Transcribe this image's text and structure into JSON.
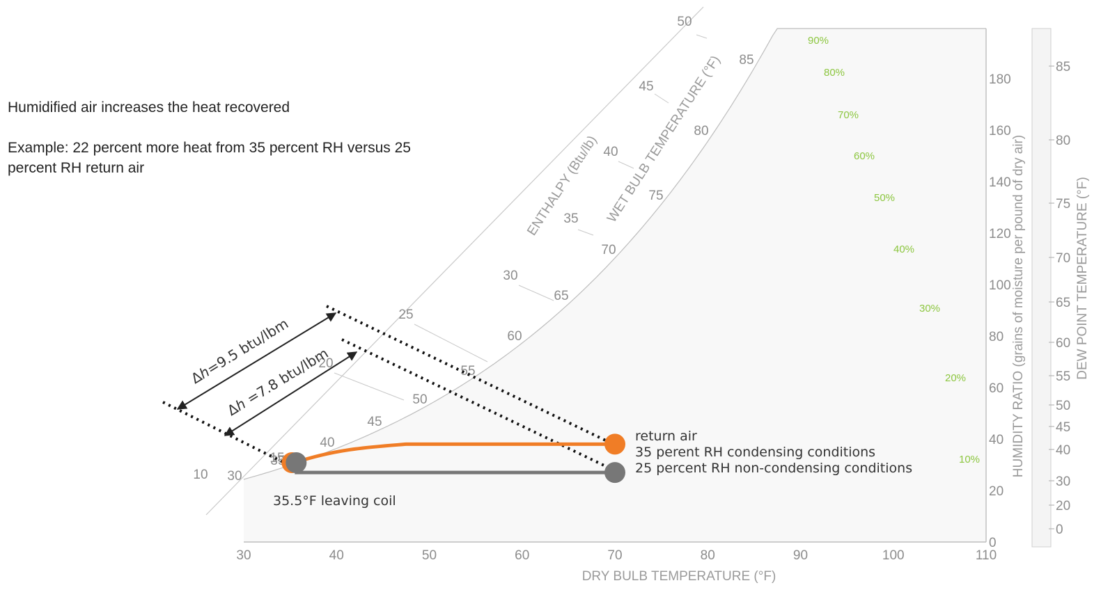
{
  "notes": {
    "heading": "Humidified air increases the heat recovered",
    "example": "Example: 22 percent more heat from 35 percent RH versus 25 percent RH return air"
  },
  "chart_data": {
    "type": "psychrometric",
    "xlabel": "DRY BULB TEMPERATURE (°F)",
    "ylabel": "HUMIDITY RATIO (grains of moisture per pound of dry air)",
    "dewpoint_label": "DEW POINT TEMPERATURE (°F)",
    "wetbulb_label": "WET BULB TEMPERATURE (°F)",
    "enthalpy_label": "ENTHALPY (Btu/lb)",
    "xlim": [
      30,
      110
    ],
    "ylim": [
      0,
      200
    ],
    "x_ticks": [
      "30",
      "40",
      "50",
      "60",
      "70",
      "80",
      "90",
      "100",
      "110"
    ],
    "y_ticks": [
      "0",
      "20",
      "40",
      "60",
      "80",
      "100",
      "120",
      "140",
      "160",
      "180"
    ],
    "dewpoint_ticks": [
      "0",
      "20",
      "30",
      "40",
      "45",
      "50",
      "55",
      "60",
      "65",
      "70",
      "75",
      "80",
      "85"
    ],
    "wetbulb_ticks": [
      "30",
      "35",
      "40",
      "45",
      "50",
      "55",
      "60",
      "65",
      "70",
      "75",
      "80",
      "85"
    ],
    "enthalpy_ticks": [
      "10",
      "15",
      "20",
      "25",
      "30",
      "35",
      "40",
      "45",
      "50"
    ],
    "rh_labels": [
      "10%",
      "20%",
      "30%",
      "40%",
      "50%",
      "60%",
      "70%",
      "80%",
      "90%"
    ],
    "points": [
      {
        "name": "leaving coil",
        "db": 35.5,
        "w": 30,
        "color": "#f07d26"
      },
      {
        "name": "return air 35% RH",
        "db": 70,
        "w": 38,
        "color": "#f07d26"
      },
      {
        "name": "return air 25% RH",
        "db": 70,
        "w": 27,
        "color": "#777777"
      }
    ],
    "processes": [
      {
        "name": "35 percent RH",
        "from_db": 70,
        "to_db": 35.5,
        "color": "#f07d26"
      },
      {
        "name": "25 percent RH",
        "from_db": 70,
        "to_db": 35.5,
        "color": "#777777"
      }
    ],
    "annotations": {
      "leaving_coil": "35.5°F leaving coil",
      "return_air": "return air",
      "condensing": "35 perent RH condensing conditions",
      "non_condensing": "25 percent RH non-condensing conditions",
      "dh1_prefix": "Δ",
      "dh1_var": "h",
      "dh1_value": "=9.5 btu/lbm",
      "dh2_prefix": "Δ",
      "dh2_var": "h",
      "dh2_value": " =7.8 btu/lbm"
    },
    "colors": {
      "rh_lines": "#8cc63f",
      "dew_lines": "#b7d3ea",
      "grid": "#cfcfcf",
      "condensing": "#f07d26",
      "non_condensing": "#777777"
    }
  }
}
